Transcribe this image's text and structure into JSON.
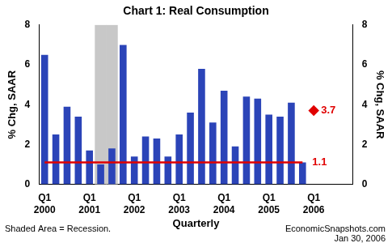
{
  "chart_data": {
    "type": "bar",
    "title": "Chart 1: Real Consumption",
    "x_label": "Quarterly",
    "y_label": "% Chg, SAAR",
    "y2_label": "% Chg, SAAR",
    "footnote": "Shaded Area = Recession.",
    "source": "EconomicSnapshots.com",
    "date": "Jan 30, 2006",
    "categories": [
      "Q1 2000",
      null,
      null,
      null,
      "Q1 2001",
      null,
      null,
      null,
      "Q1 2002",
      null,
      null,
      null,
      "Q1 2003",
      null,
      null,
      null,
      "Q1 2004",
      null,
      null,
      null,
      "Q1 2005",
      null,
      null,
      null,
      "Q1 2006",
      null,
      null,
      null
    ],
    "series": [
      {
        "type": "bar",
        "color": "#c8c8c8",
        "values": [
          null,
          null,
          null,
          null,
          null,
          8,
          8,
          null,
          null,
          null,
          null,
          null,
          null,
          null,
          null,
          null,
          null,
          null,
          null,
          null,
          null,
          null,
          null,
          null,
          null,
          null,
          null,
          null
        ]
      },
      {
        "type": "bar",
        "color": "#2b44b8",
        "values": [
          6.5,
          2.5,
          3.9,
          3.4,
          1.7,
          1.0,
          1.8,
          7.0,
          1.4,
          2.4,
          2.3,
          1.4,
          2.5,
          3.6,
          5.8,
          3.1,
          4.7,
          1.9,
          4.4,
          4.3,
          3.5,
          3.4,
          4.1,
          1.1,
          null,
          null,
          null,
          null
        ]
      },
      {
        "type": "line",
        "color": "#e00000",
        "line_style": "solid",
        "marker": "none",
        "values": [
          1.1,
          1.1,
          1.1,
          1.1,
          1.1,
          1.1,
          1.1,
          1.1,
          1.1,
          1.1,
          1.1,
          1.1,
          1.1,
          1.1,
          1.1,
          1.1,
          1.1,
          1.1,
          1.1,
          1.1,
          1.1,
          1.1,
          1.1,
          1.1,
          null,
          null,
          null,
          null
        ]
      },
      {
        "type": "line",
        "color": "#e00000",
        "line_style": "none",
        "marker": "diamond",
        "data_labels": true,
        "values": [
          null,
          null,
          null,
          null,
          null,
          null,
          null,
          null,
          null,
          null,
          null,
          null,
          null,
          null,
          null,
          null,
          null,
          null,
          null,
          null,
          null,
          null,
          null,
          null,
          3.7,
          null,
          null,
          null
        ]
      }
    ],
    "annotations": [
      {
        "text": "1.1",
        "y": 1.1,
        "color": "#e00000"
      }
    ],
    "ylim": [
      0,
      8
    ],
    "yticks": [
      0,
      2,
      4,
      6,
      8
    ],
    "y2lim": [
      0,
      8
    ],
    "y2ticks": [
      0,
      2,
      4,
      6,
      8
    ],
    "grid": false,
    "legend": false
  }
}
